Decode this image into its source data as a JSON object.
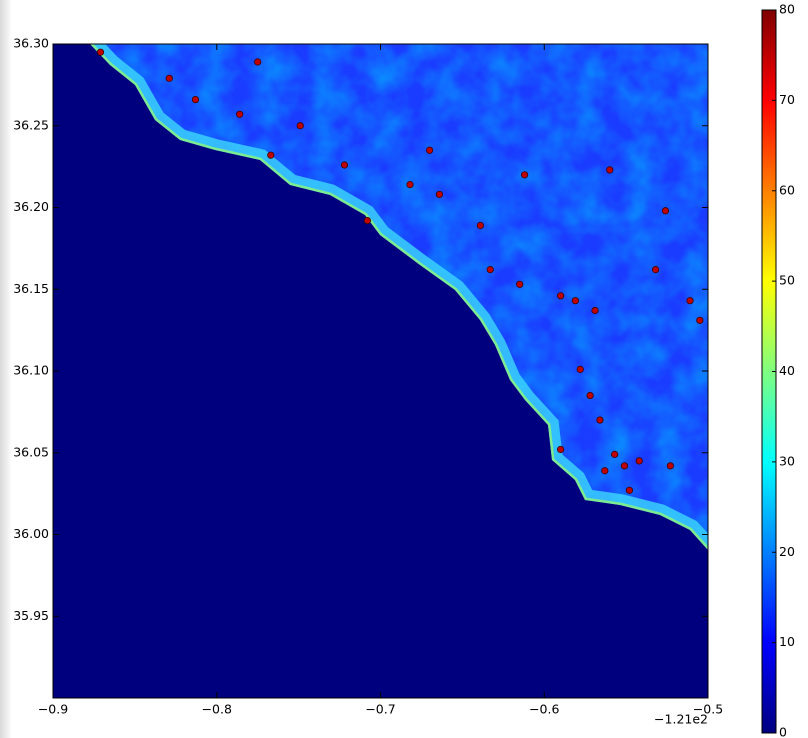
{
  "chart_data": {
    "type": "scatter",
    "x": [
      -0.871,
      -0.829,
      -0.813,
      -0.786,
      -0.775,
      -0.749,
      -0.722,
      -0.708,
      -0.682,
      -0.664,
      -0.639,
      -0.612,
      -0.59,
      -0.581,
      -0.569,
      -0.578,
      -0.566,
      -0.557,
      -0.551,
      -0.542,
      -0.563,
      -0.523,
      -0.511,
      -0.505,
      -0.532,
      -0.56,
      -0.526,
      -0.615,
      -0.633,
      -0.767,
      -0.67,
      -0.59,
      -0.548,
      -0.572
    ],
    "values": [
      36.295,
      36.279,
      36.266,
      36.257,
      36.289,
      36.25,
      36.226,
      36.192,
      36.214,
      36.208,
      36.189,
      36.22,
      36.146,
      36.143,
      36.137,
      36.101,
      36.07,
      36.049,
      36.042,
      36.045,
      36.039,
      36.042,
      36.143,
      36.131,
      36.162,
      36.223,
      36.198,
      36.153,
      36.162,
      36.232,
      36.235,
      36.052,
      36.027,
      36.085
    ],
    "color": "#c00000",
    "xlim": [
      -0.9,
      -0.5
    ],
    "xticks": [
      {
        "value": -0.9,
        "label": "−0.9"
      },
      {
        "value": -0.8,
        "label": "−0.8"
      },
      {
        "value": -0.7,
        "label": "−0.7"
      },
      {
        "value": -0.6,
        "label": "−0.6"
      },
      {
        "value": -0.5,
        "label": "−0.5"
      }
    ],
    "x_offset_label": "−1.21e2",
    "ylim": [
      35.9,
      36.3
    ],
    "yticks": [
      {
        "value": 35.95,
        "label": "35.95"
      },
      {
        "value": 36.0,
        "label": "36.00"
      },
      {
        "value": 36.05,
        "label": "36.05"
      },
      {
        "value": 36.1,
        "label": "36.10"
      },
      {
        "value": 36.15,
        "label": "36.15"
      },
      {
        "value": 36.2,
        "label": "36.20"
      },
      {
        "value": 36.25,
        "label": "36.25"
      },
      {
        "value": 36.3,
        "label": "36.30"
      }
    ],
    "colormap": "jet",
    "colorbar_lim": [
      0,
      80
    ],
    "colorbar_ticks": [
      0,
      10,
      20,
      30,
      40,
      50,
      60,
      70,
      80
    ]
  }
}
